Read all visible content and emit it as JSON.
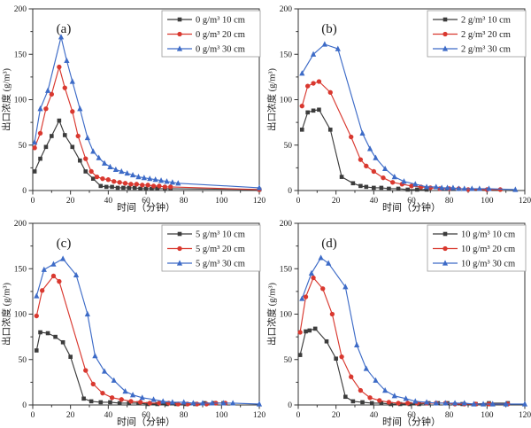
{
  "figure": {
    "background": "#ffffff",
    "axis_color": "#333333",
    "text_color": "#1a1a1a",
    "legend_border_color": "#9a9a9a"
  },
  "chart_data": [
    {
      "type": "line",
      "panel_label": "(a)",
      "xlabel": "时间（分钟）",
      "ylabel": "出口浓度 (g/m³)",
      "xlim": [
        0,
        120
      ],
      "ylim": [
        0,
        200
      ],
      "xticks": [
        0,
        20,
        40,
        60,
        80,
        100,
        120
      ],
      "yticks": [
        0,
        50,
        100,
        150,
        200
      ],
      "x_minor_step": 10,
      "y_minor_step": 25,
      "grid": false,
      "legend_position": "top-right",
      "series": [
        {
          "name": "0 g/m³ 10 cm",
          "color": "#3c3c3c",
          "marker": "square",
          "x": [
            1,
            4,
            7,
            10,
            14,
            17,
            21,
            25,
            28,
            32,
            36,
            39,
            42,
            45,
            48,
            51,
            54,
            57,
            60,
            63,
            66,
            70,
            73,
            120
          ],
          "y": [
            21,
            35,
            48,
            60,
            77,
            61,
            48,
            33,
            21,
            13,
            5,
            4,
            4,
            3,
            3,
            3,
            3,
            2,
            2,
            2,
            2,
            2,
            2,
            1
          ]
        },
        {
          "name": "0 g/m³ 20 cm",
          "color": "#d9382f",
          "marker": "circle",
          "x": [
            1,
            4,
            7,
            10,
            14,
            17,
            21,
            24,
            28,
            31,
            34,
            37,
            40,
            43,
            46,
            49,
            52,
            55,
            58,
            61,
            64,
            67,
            70,
            73,
            120
          ],
          "y": [
            47,
            63,
            90,
            106,
            136,
            113,
            87,
            60,
            35,
            21,
            15,
            13,
            12,
            10,
            9,
            8,
            7,
            7,
            6,
            6,
            5,
            5,
            4,
            4,
            1
          ]
        },
        {
          "name": "0 g/m³ 30 cm",
          "color": "#3d6bc7",
          "marker": "triangle",
          "x": [
            1,
            4,
            8,
            15,
            18,
            21,
            25,
            29,
            32,
            35,
            38,
            41,
            44,
            47,
            50,
            53,
            56,
            59,
            62,
            65,
            68,
            71,
            74,
            77,
            120
          ],
          "y": [
            53,
            90,
            110,
            169,
            143,
            120,
            90,
            58,
            43,
            36,
            30,
            26,
            23,
            21,
            19,
            17,
            15,
            14,
            13,
            12,
            11,
            10,
            9,
            8,
            3
          ]
        }
      ]
    },
    {
      "type": "line",
      "panel_label": "(b)",
      "xlabel": "时间（分钟）",
      "ylabel": "出口浓度 (g/m³)",
      "xlim": [
        0,
        120
      ],
      "ylim": [
        0,
        200
      ],
      "xticks": [
        0,
        20,
        40,
        60,
        80,
        100,
        120
      ],
      "yticks": [
        0,
        50,
        100,
        150,
        200
      ],
      "x_minor_step": 10,
      "y_minor_step": 25,
      "grid": false,
      "legend_position": "top-right",
      "series": [
        {
          "name": "2 g/m³ 10 cm",
          "color": "#3c3c3c",
          "marker": "square",
          "x": [
            2,
            5,
            8,
            11,
            17,
            23,
            29,
            33,
            36,
            40,
            44,
            48,
            53,
            58,
            63,
            68
          ],
          "y": [
            67,
            86,
            88,
            89,
            67,
            15,
            8,
            5,
            4,
            3,
            3,
            2,
            2,
            1,
            1,
            1
          ]
        },
        {
          "name": "2 g/m³ 20 cm",
          "color": "#d9382f",
          "marker": "circle",
          "x": [
            2,
            5,
            8,
            11,
            17,
            28,
            33,
            36,
            40,
            45,
            50,
            55,
            60,
            65,
            70,
            75,
            80,
            85,
            90,
            100,
            107
          ],
          "y": [
            93,
            115,
            118,
            120,
            108,
            59,
            34,
            27,
            21,
            14,
            9,
            7,
            5,
            4,
            3,
            2,
            2,
            2,
            1,
            1,
            1
          ]
        },
        {
          "name": "2 g/m³ 30 cm",
          "color": "#3d6bc7",
          "marker": "triangle",
          "x": [
            2,
            8,
            14,
            21,
            34,
            38,
            41,
            46,
            51,
            56,
            62,
            68,
            73,
            76,
            79,
            82,
            85,
            88,
            92,
            96,
            101,
            115
          ],
          "y": [
            129,
            150,
            161,
            156,
            63,
            46,
            36,
            24,
            15,
            10,
            7,
            4,
            4,
            3,
            3,
            3,
            2,
            2,
            2,
            2,
            2,
            1
          ]
        }
      ]
    },
    {
      "type": "line",
      "panel_label": "(c)",
      "xlabel": "时间（分钟）",
      "ylabel": "出口浓度 (g/m³)",
      "xlim": [
        0,
        120
      ],
      "ylim": [
        0,
        200
      ],
      "xticks": [
        0,
        20,
        40,
        60,
        80,
        100,
        120
      ],
      "yticks": [
        0,
        50,
        100,
        150,
        200
      ],
      "x_minor_step": 10,
      "y_minor_step": 25,
      "grid": false,
      "legend_position": "top-right",
      "series": [
        {
          "name": "5 g/m³ 10 cm",
          "color": "#3c3c3c",
          "marker": "square",
          "x": [
            2,
            4,
            8,
            12,
            16,
            20,
            27,
            31,
            36,
            41,
            46,
            51,
            56,
            61,
            66,
            71,
            76,
            81,
            86,
            91,
            96,
            101
          ],
          "y": [
            60,
            80,
            79,
            75,
            69,
            53,
            7,
            4,
            3,
            3,
            2,
            2,
            2,
            1,
            1,
            1,
            1,
            1,
            1,
            2,
            2,
            2
          ]
        },
        {
          "name": "5 g/m³ 20 cm",
          "color": "#d9382f",
          "marker": "circle",
          "x": [
            2,
            5,
            11,
            14,
            28,
            32,
            37,
            42,
            47,
            52,
            57,
            62,
            67,
            72,
            77,
            82,
            87,
            92,
            97,
            102
          ],
          "y": [
            98,
            126,
            142,
            136,
            38,
            23,
            13,
            8,
            6,
            4,
            3,
            2,
            2,
            2,
            1,
            1,
            1,
            1,
            2,
            2
          ]
        },
        {
          "name": "5 g/m³ 30 cm",
          "color": "#3d6bc7",
          "marker": "triangle",
          "x": [
            2,
            6,
            11,
            16,
            23,
            29,
            33,
            38,
            43,
            49,
            53,
            58,
            64,
            69,
            74,
            80,
            85,
            90,
            95,
            101,
            106,
            120
          ],
          "y": [
            120,
            149,
            155,
            161,
            143,
            100,
            54,
            37,
            27,
            15,
            11,
            8,
            6,
            4,
            3,
            3,
            2,
            2,
            2,
            2,
            2,
            1
          ]
        }
      ]
    },
    {
      "type": "line",
      "panel_label": "(d)",
      "xlabel": "时间（分钟）",
      "ylabel": "出口浓度 (g/m³)",
      "xlim": [
        0,
        120
      ],
      "ylim": [
        0,
        200
      ],
      "xticks": [
        0,
        20,
        40,
        60,
        80,
        100,
        120
      ],
      "yticks": [
        0,
        50,
        100,
        150,
        200
      ],
      "x_minor_step": 10,
      "y_minor_step": 25,
      "grid": false,
      "legend_position": "top-right",
      "series": [
        {
          "name": "10 g/m³ 10 cm",
          "color": "#3c3c3c",
          "marker": "square",
          "x": [
            1,
            4,
            6,
            9,
            15,
            20,
            25,
            29,
            34,
            39,
            44,
            49,
            54,
            59,
            64,
            69,
            74,
            79,
            87,
            94,
            101,
            111
          ],
          "y": [
            55,
            81,
            82,
            84,
            70,
            51,
            9,
            4,
            3,
            2,
            2,
            1,
            1,
            1,
            1,
            2,
            2,
            2,
            1,
            1,
            2,
            2
          ]
        },
        {
          "name": "10 g/m³ 20 cm",
          "color": "#d9382f",
          "marker": "circle",
          "x": [
            1,
            4,
            8,
            13,
            18,
            23,
            28,
            33,
            38,
            43,
            48,
            53,
            58,
            63,
            68,
            73,
            78,
            83,
            88,
            94,
            101,
            111
          ],
          "y": [
            80,
            119,
            140,
            128,
            100,
            53,
            31,
            16,
            8,
            5,
            3,
            2,
            2,
            2,
            2,
            2,
            2,
            1,
            1,
            1,
            1,
            1
          ]
        },
        {
          "name": "10 g/m³ 30 cm",
          "color": "#3d6bc7",
          "marker": "triangle",
          "x": [
            2,
            7,
            12,
            16,
            25,
            31,
            36,
            41,
            46,
            51,
            57,
            62,
            68,
            73,
            78,
            83,
            88,
            93,
            98,
            103,
            110,
            120
          ],
          "y": [
            117,
            145,
            162,
            156,
            130,
            66,
            40,
            27,
            16,
            10,
            7,
            4,
            3,
            2,
            2,
            2,
            2,
            1,
            1,
            1,
            1,
            1
          ]
        }
      ]
    }
  ]
}
